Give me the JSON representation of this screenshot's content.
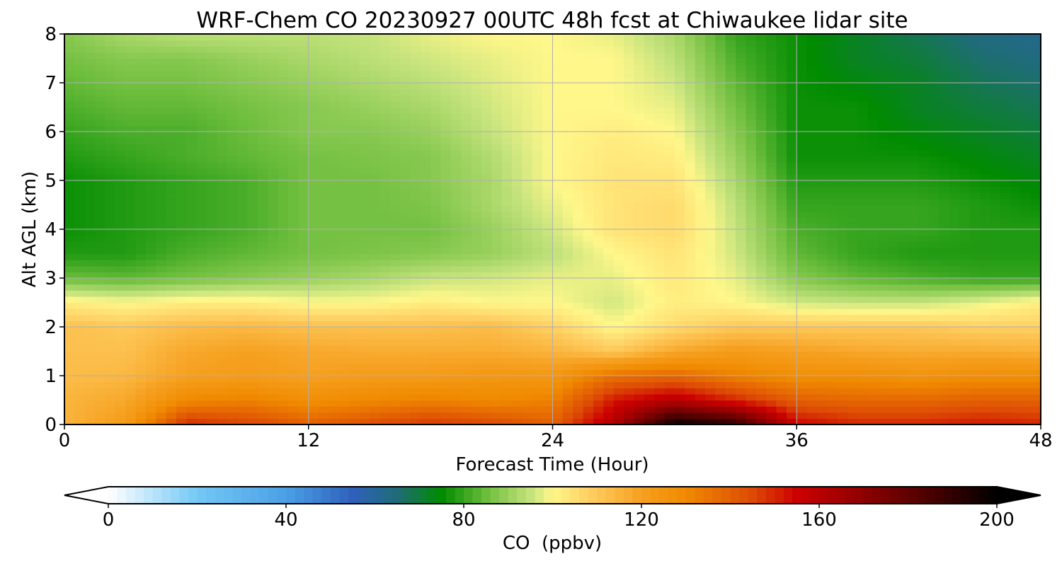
{
  "chart_data": {
    "type": "heatmap",
    "title": "WRF-Chem CO  20230927 00UTC 48h fcst at Chiwaukee lidar site",
    "xlabel": "Forecast Time (Hour)",
    "ylabel": "Alt AGL (km)",
    "xlim": [
      0,
      48
    ],
    "ylim": [
      0,
      8
    ],
    "x_ticks": [
      "0",
      "12",
      "24",
      "36",
      "48"
    ],
    "y_ticks": [
      "0",
      "1",
      "2",
      "3",
      "4",
      "5",
      "6",
      "7",
      "8"
    ],
    "grid": true,
    "x": [
      0,
      3,
      6,
      9,
      12,
      15,
      18,
      21,
      24,
      27,
      30,
      33,
      36,
      39,
      42,
      45,
      48
    ],
    "y": [
      0,
      0.5,
      1,
      1.5,
      2,
      2.5,
      3,
      3.5,
      4,
      4.5,
      5,
      5.5,
      6,
      6.5,
      7,
      7.5,
      8
    ],
    "z": [
      [
        115,
        122,
        150,
        146,
        140,
        144,
        148,
        145,
        140,
        162,
        200,
        192,
        155,
        150,
        150,
        152,
        150
      ],
      [
        115,
        118,
        130,
        132,
        128,
        130,
        132,
        130,
        132,
        152,
        160,
        150,
        140,
        138,
        138,
        140,
        140
      ],
      [
        113,
        114,
        120,
        122,
        120,
        122,
        122,
        124,
        124,
        136,
        138,
        132,
        128,
        128,
        126,
        128,
        128
      ],
      [
        112,
        112,
        118,
        120,
        118,
        117,
        117,
        117,
        115,
        110,
        118,
        122,
        120,
        118,
        117,
        117,
        116
      ],
      [
        112,
        110,
        113,
        114,
        112,
        112,
        112,
        113,
        108,
        100,
        106,
        110,
        110,
        110,
        110,
        108,
        108
      ],
      [
        102,
        100,
        102,
        102,
        100,
        100,
        102,
        100,
        100,
        96,
        102,
        100,
        96,
        95,
        95,
        98,
        102
      ],
      [
        85,
        84,
        86,
        88,
        90,
        92,
        95,
        96,
        98,
        98,
        103,
        98,
        88,
        84,
        82,
        80,
        80
      ],
      [
        78,
        78,
        82,
        84,
        86,
        87,
        88,
        90,
        94,
        100,
        104,
        96,
        84,
        80,
        78,
        78,
        78
      ],
      [
        76,
        78,
        80,
        82,
        86,
        86,
        86,
        90,
        96,
        104,
        106,
        95,
        82,
        80,
        80,
        78,
        78
      ],
      [
        76,
        78,
        80,
        82,
        86,
        86,
        87,
        92,
        98,
        104,
        106,
        94,
        80,
        80,
        80,
        78,
        76
      ],
      [
        76,
        78,
        80,
        82,
        86,
        86,
        88,
        92,
        100,
        104,
        104,
        92,
        78,
        78,
        78,
        76,
        74
      ],
      [
        78,
        80,
        82,
        84,
        86,
        87,
        88,
        93,
        100,
        103,
        102,
        90,
        76,
        76,
        76,
        74,
        72
      ],
      [
        80,
        82,
        82,
        85,
        88,
        88,
        90,
        95,
        100,
        102,
        100,
        88,
        76,
        76,
        74,
        72,
        70
      ],
      [
        82,
        84,
        84,
        86,
        88,
        90,
        92,
        96,
        100,
        100,
        98,
        86,
        76,
        76,
        72,
        70,
        68
      ],
      [
        84,
        86,
        86,
        88,
        90,
        92,
        94,
        97,
        100,
        100,
        96,
        84,
        76,
        74,
        72,
        68,
        66
      ],
      [
        86,
        88,
        88,
        90,
        92,
        94,
        96,
        98,
        100,
        100,
        94,
        82,
        76,
        72,
        70,
        66,
        64
      ],
      [
        88,
        92,
        94,
        94,
        94,
        95,
        98,
        100,
        100,
        98,
        92,
        80,
        76,
        72,
        68,
        64,
        62
      ]
    ],
    "colorbar": {
      "label": "CO  (ppbv)",
      "min": 0,
      "max": 200,
      "ticks": [
        "0",
        "40",
        "80",
        "120",
        "160",
        "200"
      ],
      "extend": "both",
      "orientation": "horizontal"
    }
  },
  "colors": {
    "colormap": [
      [
        0,
        "#ffffff"
      ],
      [
        20,
        "#73c8f5"
      ],
      [
        40,
        "#4ba0e6"
      ],
      [
        55,
        "#2f60bb"
      ],
      [
        65,
        "#1f6c78"
      ],
      [
        75,
        "#008b00"
      ],
      [
        85,
        "#6cbd3c"
      ],
      [
        95,
        "#c5e37d"
      ],
      [
        100,
        "#fff78a"
      ],
      [
        108,
        "#ffd064"
      ],
      [
        120,
        "#f6a020"
      ],
      [
        130,
        "#f08a00"
      ],
      [
        145,
        "#dd4a05"
      ],
      [
        155,
        "#cc0000"
      ],
      [
        170,
        "#8e0000"
      ],
      [
        185,
        "#4a0000"
      ],
      [
        200,
        "#000000"
      ]
    ],
    "grid": "#b0b0b0"
  }
}
